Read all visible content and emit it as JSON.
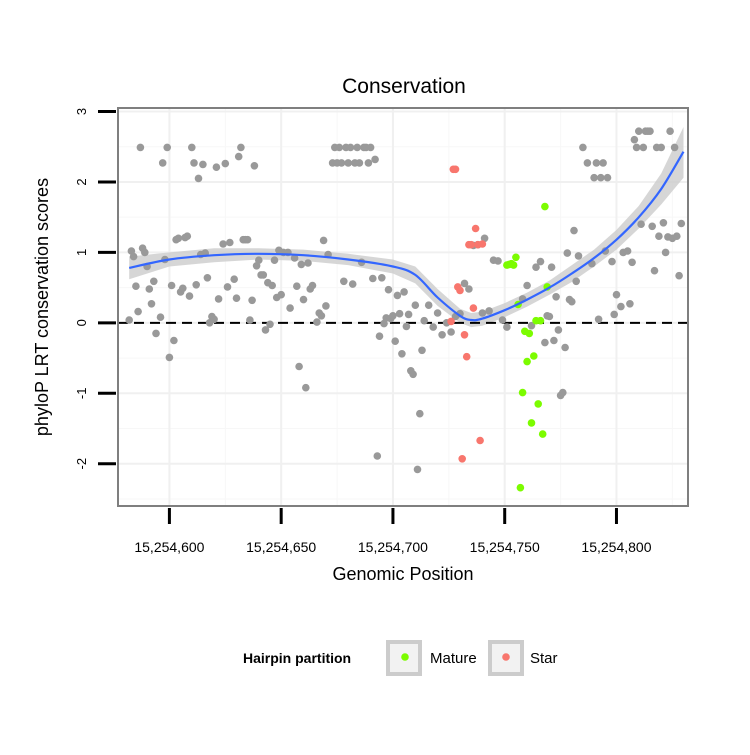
{
  "chart_data": {
    "type": "scatter",
    "title": "Conservation",
    "xlabel": "Genomic Position",
    "ylabel": "phyloP LRT conservation scores",
    "xlim": [
      15254577,
      15254832
    ],
    "ylim": [
      -2.6,
      3.05
    ],
    "x_ticks": [
      15254600,
      15254650,
      15254700,
      15254750,
      15254800
    ],
    "x_tick_labels": [
      "15,254,600",
      "15,254,650",
      "15,254,700",
      "15,254,750",
      "15,254,800"
    ],
    "y_ticks": [
      -2,
      -1,
      0,
      1,
      2,
      3
    ],
    "y_tick_labels": [
      "-2",
      "-1",
      "0",
      "1",
      "2",
      "3"
    ],
    "reference_line": {
      "y": 0,
      "style": "dashed"
    },
    "legend": {
      "title": "Hairpin partition",
      "position": "bottom",
      "entries": [
        {
          "label": "Mature",
          "color": "#7cfc00"
        },
        {
          "label": "Star",
          "color": "#f8766d"
        }
      ]
    },
    "colors": {
      "Other": "#999999",
      "Mature": "#7cfc00",
      "Star": "#f8766d",
      "smooth": "#3366ff",
      "ribbon": "#cccccc"
    },
    "series": [
      {
        "name": "Other",
        "points": [
          [
            15254582,
            0.04
          ],
          [
            15254583,
            1.02
          ],
          [
            15254584,
            0.94
          ],
          [
            15254585,
            0.52
          ],
          [
            15254586,
            0.16
          ],
          [
            15254587,
            2.49
          ],
          [
            15254588,
            1.06
          ],
          [
            15254589,
            1.0
          ],
          [
            15254590,
            0.8
          ],
          [
            15254591,
            0.48
          ],
          [
            15254592,
            0.27
          ],
          [
            15254593,
            0.59
          ],
          [
            15254594,
            -0.15
          ],
          [
            15254596,
            0.08
          ],
          [
            15254597,
            2.27
          ],
          [
            15254598,
            0.9
          ],
          [
            15254599,
            2.49
          ],
          [
            15254600,
            -0.49
          ],
          [
            15254601,
            0.53
          ],
          [
            15254602,
            -0.25
          ],
          [
            15254603,
            1.18
          ],
          [
            15254604,
            1.2
          ],
          [
            15254605,
            0.44
          ],
          [
            15254606,
            0.49
          ],
          [
            15254607,
            1.21
          ],
          [
            15254608,
            1.23
          ],
          [
            15254609,
            0.38
          ],
          [
            15254610,
            2.49
          ],
          [
            15254611,
            2.27
          ],
          [
            15254612,
            0.54
          ],
          [
            15254613,
            2.05
          ],
          [
            15254614,
            0.97
          ],
          [
            15254615,
            2.25
          ],
          [
            15254616,
            0.99
          ],
          [
            15254617,
            0.64
          ],
          [
            15254618,
            0.0
          ],
          [
            15254619,
            0.09
          ],
          [
            15254620,
            0.05
          ],
          [
            15254621,
            2.21
          ],
          [
            15254622,
            0.34
          ],
          [
            15254624,
            1.12
          ],
          [
            15254625,
            2.26
          ],
          [
            15254626,
            0.51
          ],
          [
            15254627,
            1.14
          ],
          [
            15254629,
            0.62
          ],
          [
            15254630,
            0.35
          ],
          [
            15254631,
            2.36
          ],
          [
            15254632,
            2.49
          ],
          [
            15254633,
            1.18
          ],
          [
            15254634,
            1.18
          ],
          [
            15254635,
            1.18
          ],
          [
            15254636,
            0.04
          ],
          [
            15254637,
            0.32
          ],
          [
            15254638,
            2.23
          ],
          [
            15254639,
            0.81
          ],
          [
            15254640,
            0.89
          ],
          [
            15254641,
            0.68
          ],
          [
            15254642,
            0.68
          ],
          [
            15254643,
            -0.1
          ],
          [
            15254644,
            0.57
          ],
          [
            15254645,
            -0.02
          ],
          [
            15254646,
            0.53
          ],
          [
            15254647,
            0.89
          ],
          [
            15254648,
            0.36
          ],
          [
            15254649,
            1.03
          ],
          [
            15254650,
            0.4
          ],
          [
            15254651,
            1.0
          ],
          [
            15254653,
            1.0
          ],
          [
            15254654,
            0.21
          ],
          [
            15254656,
            0.92
          ],
          [
            15254657,
            0.52
          ],
          [
            15254658,
            -0.62
          ],
          [
            15254659,
            0.83
          ],
          [
            15254660,
            0.33
          ],
          [
            15254661,
            -0.92
          ],
          [
            15254662,
            0.85
          ],
          [
            15254663,
            0.48
          ],
          [
            15254664,
            0.53
          ],
          [
            15254666,
            0.01
          ],
          [
            15254667,
            0.14
          ],
          [
            15254668,
            0.1
          ],
          [
            15254669,
            1.17
          ],
          [
            15254670,
            0.24
          ],
          [
            15254671,
            0.97
          ],
          [
            15254673,
            2.27
          ],
          [
            15254674,
            2.49
          ],
          [
            15254675,
            2.27
          ],
          [
            15254676,
            2.49
          ],
          [
            15254677,
            2.27
          ],
          [
            15254678,
            0.59
          ],
          [
            15254679,
            2.49
          ],
          [
            15254680,
            2.27
          ],
          [
            15254681,
            2.49
          ],
          [
            15254682,
            0.55
          ],
          [
            15254683,
            2.27
          ],
          [
            15254684,
            2.49
          ],
          [
            15254685,
            2.27
          ],
          [
            15254686,
            0.86
          ],
          [
            15254687,
            2.49
          ],
          [
            15254688,
            2.49
          ],
          [
            15254689,
            2.27
          ],
          [
            15254690,
            2.49
          ],
          [
            15254691,
            0.63
          ],
          [
            15254692,
            2.32
          ],
          [
            15254693,
            -1.89
          ],
          [
            15254694,
            -0.19
          ],
          [
            15254695,
            0.64
          ],
          [
            15254696,
            -0.01
          ],
          [
            15254697,
            0.07
          ],
          [
            15254698,
            0.47
          ],
          [
            15254699,
            0.06
          ],
          [
            15254700,
            0.1
          ],
          [
            15254701,
            -0.26
          ],
          [
            15254702,
            0.39
          ],
          [
            15254703,
            0.13
          ],
          [
            15254704,
            -0.44
          ],
          [
            15254705,
            0.44
          ],
          [
            15254706,
            -0.05
          ],
          [
            15254707,
            0.12
          ],
          [
            15254708,
            -0.68
          ],
          [
            15254709,
            -0.73
          ],
          [
            15254710,
            0.25
          ],
          [
            15254711,
            -2.08
          ],
          [
            15254712,
            -1.29
          ],
          [
            15254713,
            -0.39
          ],
          [
            15254714,
            0.03
          ],
          [
            15254716,
            0.25
          ],
          [
            15254718,
            -0.06
          ],
          [
            15254720,
            0.14
          ],
          [
            15254722,
            -0.17
          ],
          [
            15254724,
            0.0
          ],
          [
            15254726,
            -0.13
          ],
          [
            15254728,
            0.09
          ],
          [
            15254730,
            0.13
          ],
          [
            15254732,
            0.56
          ],
          [
            15254734,
            0.48
          ],
          [
            15254736,
            1.1
          ],
          [
            15254738,
            1.11
          ],
          [
            15254740,
            0.14
          ],
          [
            15254741,
            1.2
          ],
          [
            15254743,
            0.17
          ],
          [
            15254745,
            0.89
          ],
          [
            15254747,
            0.88
          ],
          [
            15254749,
            0.04
          ],
          [
            15254751,
            -0.06
          ],
          [
            15254758,
            0.34
          ],
          [
            15254760,
            0.53
          ],
          [
            15254762,
            -0.04
          ],
          [
            15254764,
            0.79
          ],
          [
            15254766,
            0.87
          ],
          [
            15254768,
            -0.28
          ],
          [
            15254769,
            0.1
          ],
          [
            15254770,
            0.09
          ],
          [
            15254771,
            0.79
          ],
          [
            15254772,
            -0.25
          ],
          [
            15254773,
            0.37
          ],
          [
            15254774,
            -0.1
          ],
          [
            15254775,
            -1.03
          ],
          [
            15254776,
            -0.99
          ],
          [
            15254777,
            -0.35
          ],
          [
            15254778,
            0.99
          ],
          [
            15254779,
            0.33
          ],
          [
            15254780,
            0.3
          ],
          [
            15254781,
            1.31
          ],
          [
            15254782,
            0.59
          ],
          [
            15254783,
            0.95
          ],
          [
            15254785,
            2.49
          ],
          [
            15254787,
            2.27
          ],
          [
            15254789,
            0.84
          ],
          [
            15254790,
            2.06
          ],
          [
            15254791,
            2.27
          ],
          [
            15254792,
            0.05
          ],
          [
            15254793,
            2.06
          ],
          [
            15254794,
            2.27
          ],
          [
            15254795,
            1.02
          ],
          [
            15254796,
            2.06
          ],
          [
            15254798,
            0.87
          ],
          [
            15254799,
            0.12
          ],
          [
            15254800,
            0.4
          ],
          [
            15254802,
            0.23
          ],
          [
            15254803,
            1.0
          ],
          [
            15254805,
            1.02
          ],
          [
            15254806,
            0.27
          ],
          [
            15254807,
            0.86
          ],
          [
            15254808,
            2.6
          ],
          [
            15254809,
            2.49
          ],
          [
            15254810,
            2.72
          ],
          [
            15254811,
            1.4
          ],
          [
            15254812,
            2.49
          ],
          [
            15254813,
            2.72
          ],
          [
            15254814,
            2.72
          ],
          [
            15254815,
            2.72
          ],
          [
            15254816,
            1.37
          ],
          [
            15254817,
            0.74
          ],
          [
            15254818,
            2.49
          ],
          [
            15254819,
            1.23
          ],
          [
            15254820,
            2.49
          ],
          [
            15254821,
            1.42
          ],
          [
            15254822,
            1.0
          ],
          [
            15254823,
            1.22
          ],
          [
            15254824,
            2.72
          ],
          [
            15254825,
            1.2
          ],
          [
            15254826,
            2.49
          ],
          [
            15254827,
            1.23
          ],
          [
            15254828,
            0.67
          ],
          [
            15254829,
            1.41
          ]
        ]
      },
      {
        "name": "Mature",
        "points": [
          [
            15254751,
            0.82
          ],
          [
            15254752,
            0.83
          ],
          [
            15254753,
            0.84
          ],
          [
            15254754,
            0.82
          ],
          [
            15254755,
            0.93
          ],
          [
            15254756,
            0.26
          ],
          [
            15254757,
            -2.34
          ],
          [
            15254758,
            -0.99
          ],
          [
            15254759,
            -0.12
          ],
          [
            15254760,
            -0.55
          ],
          [
            15254761,
            -0.15
          ],
          [
            15254762,
            -1.42
          ],
          [
            15254763,
            -0.47
          ],
          [
            15254764,
            0.03
          ],
          [
            15254765,
            -1.15
          ],
          [
            15254766,
            0.03
          ],
          [
            15254767,
            -1.58
          ],
          [
            15254768,
            1.65
          ],
          [
            15254769,
            0.51
          ]
        ]
      },
      {
        "name": "Star",
        "points": [
          [
            15254726,
            0.02
          ],
          [
            15254727,
            2.18
          ],
          [
            15254728,
            2.18
          ],
          [
            15254729,
            0.51
          ],
          [
            15254730,
            0.46
          ],
          [
            15254731,
            -1.93
          ],
          [
            15254732,
            -0.17
          ],
          [
            15254733,
            -0.48
          ],
          [
            15254734,
            1.11
          ],
          [
            15254735,
            1.11
          ],
          [
            15254736,
            0.21
          ],
          [
            15254737,
            1.34
          ],
          [
            15254738,
            1.11
          ],
          [
            15254739,
            -1.67
          ],
          [
            15254740,
            1.12
          ]
        ]
      }
    ],
    "smooth": {
      "method": "loess",
      "x": [
        15254582,
        15254600,
        15254620,
        15254640,
        15254660,
        15254680,
        15254700,
        15254710,
        15254720,
        15254730,
        15254735,
        15254740,
        15254750,
        15254760,
        15254770,
        15254780,
        15254790,
        15254800,
        15254810,
        15254820,
        15254830
      ],
      "y": [
        0.78,
        0.9,
        0.96,
        0.98,
        0.96,
        0.9,
        0.8,
        0.68,
        0.36,
        0.1,
        0.04,
        0.06,
        0.18,
        0.33,
        0.5,
        0.7,
        0.92,
        1.18,
        1.5,
        1.9,
        2.43
      ],
      "lower": [
        0.62,
        0.8,
        0.86,
        0.9,
        0.88,
        0.82,
        0.7,
        0.56,
        0.24,
        0.0,
        -0.06,
        -0.04,
        0.08,
        0.23,
        0.4,
        0.58,
        0.8,
        1.04,
        1.34,
        1.68,
        2.06
      ],
      "upper": [
        0.94,
        1.0,
        1.06,
        1.06,
        1.04,
        0.98,
        0.9,
        0.8,
        0.48,
        0.2,
        0.14,
        0.16,
        0.28,
        0.43,
        0.6,
        0.82,
        1.04,
        1.32,
        1.66,
        2.12,
        2.78
      ]
    }
  }
}
